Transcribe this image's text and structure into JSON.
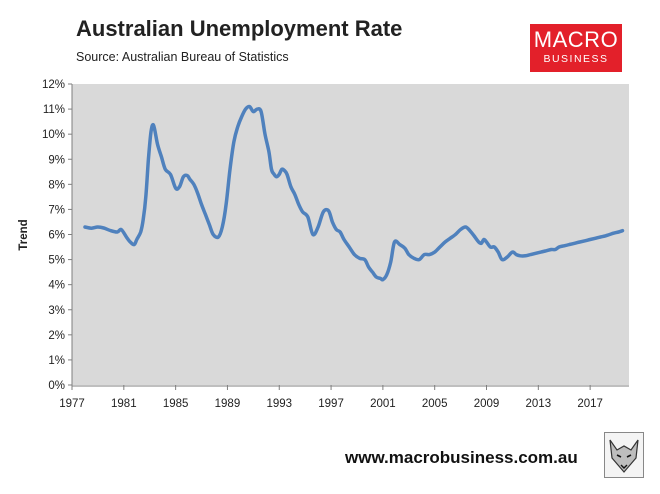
{
  "header": {
    "title": "Australian Unemployment Rate",
    "subtitle": "Source: Australian Bureau of Statistics"
  },
  "logo": {
    "line1": "MACRO",
    "line2": "BUSINESS",
    "color": "#e3202a"
  },
  "footer": {
    "url": "www.macrobusiness.com.au",
    "mascot_icon": "fox-icon"
  },
  "chart_data": {
    "type": "line",
    "title": "Australian Unemployment Rate",
    "subtitle": "Source: Australian Bureau of Statistics",
    "xlabel": "",
    "ylabel": "Trend",
    "xlim": [
      1977,
      2020
    ],
    "ylim": [
      0,
      12
    ],
    "y_unit": "%",
    "x_ticks": [
      1977,
      1981,
      1985,
      1989,
      1993,
      1997,
      2001,
      2005,
      2009,
      2013,
      2017
    ],
    "y_ticks": [
      "0%",
      "1%",
      "2%",
      "3%",
      "4%",
      "5%",
      "6%",
      "7%",
      "8%",
      "9%",
      "10%",
      "11%",
      "12%"
    ],
    "plot_background": "#d9d9d9",
    "line_color": "#4f81bd",
    "grid": false,
    "legend": "none",
    "series": [
      {
        "x": [
          1978.0,
          1978.5,
          1979.0,
          1979.5,
          1980.0,
          1980.5,
          1980.8,
          1981.2,
          1981.5,
          1981.8,
          1982.0,
          1982.3,
          1982.5,
          1982.7,
          1982.9,
          1983.1,
          1983.3,
          1983.6,
          1983.9,
          1984.2,
          1984.6,
          1985.0,
          1985.3,
          1985.6,
          1985.9,
          1986.1,
          1986.4,
          1986.7,
          1987.0,
          1987.3,
          1987.6,
          1987.9,
          1988.3,
          1988.6,
          1988.9,
          1989.2,
          1989.5,
          1989.8,
          1990.1,
          1990.4,
          1990.7,
          1991.0,
          1991.3,
          1991.6,
          1991.9,
          1992.2,
          1992.4,
          1992.6,
          1992.8,
          1993.0,
          1993.2,
          1993.4,
          1993.6,
          1993.9,
          1994.2,
          1994.5,
          1994.8,
          1995.2,
          1995.6,
          1996.0,
          1996.4,
          1996.8,
          1997.1,
          1997.4,
          1997.7,
          1998.0,
          1998.4,
          1998.8,
          1999.2,
          1999.6,
          1999.9,
          2000.2,
          2000.5,
          2000.8,
          2001.0,
          2001.3,
          2001.6,
          2001.9,
          2002.3,
          2002.7,
          2003.0,
          2003.4,
          2003.8,
          2004.2,
          2004.6,
          2005.0,
          2005.4,
          2005.8,
          2006.2,
          2006.6,
          2007.0,
          2007.4,
          2007.8,
          2008.1,
          2008.4,
          2008.6,
          2008.8,
          2009.0,
          2009.3,
          2009.6,
          2009.9,
          2010.2,
          2010.6,
          2011.0,
          2011.3,
          2011.6,
          2012.0,
          2012.4,
          2012.8,
          2013.2,
          2013.6,
          2014.0,
          2014.3,
          2014.6,
          2015.0,
          2015.4,
          2015.8,
          2016.2,
          2016.6,
          2017.0,
          2017.4,
          2017.8,
          2018.2,
          2018.5,
          2018.8,
          2019.2,
          2019.5
        ],
        "y": [
          6.3,
          6.25,
          6.3,
          6.25,
          6.15,
          6.1,
          6.2,
          5.9,
          5.7,
          5.6,
          5.8,
          6.1,
          6.6,
          7.5,
          9.0,
          10.1,
          10.35,
          9.6,
          9.1,
          8.6,
          8.4,
          7.85,
          7.9,
          8.3,
          8.35,
          8.2,
          8.0,
          7.65,
          7.2,
          6.8,
          6.4,
          6.0,
          5.9,
          6.3,
          7.2,
          8.6,
          9.7,
          10.3,
          10.7,
          11.0,
          11.1,
          10.9,
          11.0,
          10.9,
          10.0,
          9.3,
          8.6,
          8.4,
          8.3,
          8.4,
          8.6,
          8.55,
          8.4,
          7.9,
          7.6,
          7.2,
          6.9,
          6.7,
          6.0,
          6.3,
          6.9,
          6.95,
          6.5,
          6.2,
          6.1,
          5.8,
          5.5,
          5.2,
          5.05,
          5.0,
          4.7,
          4.5,
          4.3,
          4.25,
          4.2,
          4.4,
          4.9,
          5.7,
          5.6,
          5.45,
          5.2,
          5.05,
          5.0,
          5.2,
          5.2,
          5.3,
          5.5,
          5.7,
          5.85,
          6.0,
          6.2,
          6.3,
          6.1,
          5.9,
          5.7,
          5.65,
          5.8,
          5.7,
          5.5,
          5.5,
          5.3,
          5.0,
          5.1,
          5.3,
          5.2,
          5.15,
          5.15,
          5.2,
          5.25,
          5.3,
          5.35,
          5.4,
          5.4,
          5.5,
          5.55,
          5.6,
          5.65,
          5.7,
          5.75,
          5.8,
          5.85,
          5.9,
          5.95,
          6.0,
          6.05,
          6.1,
          6.15
        ]
      }
    ]
  }
}
